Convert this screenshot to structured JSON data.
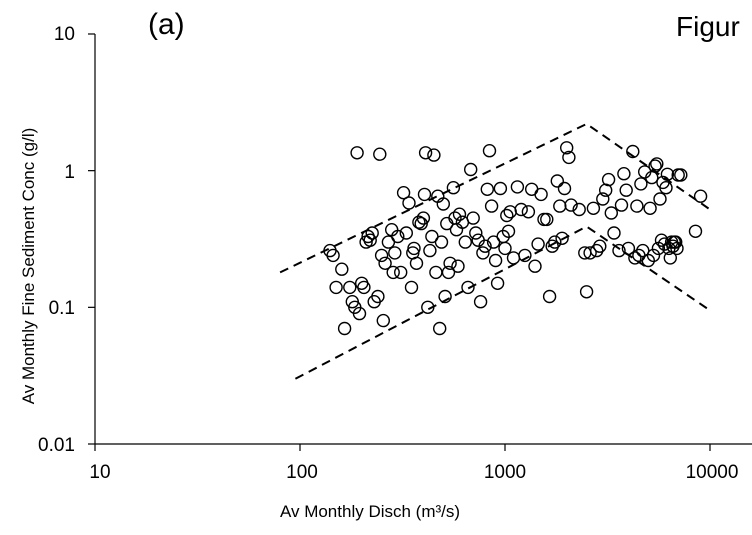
{
  "panel_label": "(a)",
  "figure_label": "Figur",
  "chart_data": {
    "type": "scatter",
    "title": "",
    "xlabel": "Av Monthly Disch (m³/s)",
    "ylabel": "Av Monthly  Fine Sediment Conc (g/l)",
    "x_scale": "log",
    "y_scale": "log",
    "xlim": [
      10,
      10000
    ],
    "ylim": [
      0.01,
      10
    ],
    "x_ticks": [
      "10",
      "100",
      "1000",
      "10000"
    ],
    "y_ticks": [
      "10",
      "1",
      "0.1",
      "0.01"
    ],
    "grid": false,
    "legend": "none",
    "marker": "open-circle",
    "points": [
      [
        140,
        0.26
      ],
      [
        145,
        0.24
      ],
      [
        150,
        0.14
      ],
      [
        160,
        0.19
      ],
      [
        165,
        0.07
      ],
      [
        175,
        0.14
      ],
      [
        180,
        0.11
      ],
      [
        185,
        0.1
      ],
      [
        190,
        1.35
      ],
      [
        195,
        0.09
      ],
      [
        200,
        0.15
      ],
      [
        205,
        0.14
      ],
      [
        210,
        0.3
      ],
      [
        215,
        0.33
      ],
      [
        220,
        0.31
      ],
      [
        225,
        0.35
      ],
      [
        230,
        0.11
      ],
      [
        240,
        0.12
      ],
      [
        245,
        1.32
      ],
      [
        250,
        0.24
      ],
      [
        255,
        0.08
      ],
      [
        260,
        0.21
      ],
      [
        270,
        0.3
      ],
      [
        280,
        0.37
      ],
      [
        285,
        0.18
      ],
      [
        290,
        0.25
      ],
      [
        300,
        0.33
      ],
      [
        310,
        0.18
      ],
      [
        320,
        0.69
      ],
      [
        330,
        0.35
      ],
      [
        340,
        0.58
      ],
      [
        350,
        0.14
      ],
      [
        355,
        0.25
      ],
      [
        360,
        0.27
      ],
      [
        370,
        0.21
      ],
      [
        380,
        0.42
      ],
      [
        390,
        0.41
      ],
      [
        400,
        0.45
      ],
      [
        405,
        0.67
      ],
      [
        410,
        1.35
      ],
      [
        420,
        0.1
      ],
      [
        430,
        0.26
      ],
      [
        440,
        0.33
      ],
      [
        450,
        1.3
      ],
      [
        460,
        0.18
      ],
      [
        470,
        0.65
      ],
      [
        480,
        0.07
      ],
      [
        490,
        0.3
      ],
      [
        500,
        0.57
      ],
      [
        510,
        0.12
      ],
      [
        520,
        0.41
      ],
      [
        530,
        0.18
      ],
      [
        540,
        0.21
      ],
      [
        560,
        0.75
      ],
      [
        570,
        0.45
      ],
      [
        580,
        0.37
      ],
      [
        590,
        0.2
      ],
      [
        600,
        0.48
      ],
      [
        620,
        0.42
      ],
      [
        640,
        0.3
      ],
      [
        660,
        0.14
      ],
      [
        680,
        1.02
      ],
      [
        700,
        0.45
      ],
      [
        720,
        0.35
      ],
      [
        740,
        0.31
      ],
      [
        760,
        0.11
      ],
      [
        780,
        0.25
      ],
      [
        800,
        0.28
      ],
      [
        820,
        0.73
      ],
      [
        840,
        1.4
      ],
      [
        860,
        0.55
      ],
      [
        880,
        0.3
      ],
      [
        900,
        0.22
      ],
      [
        920,
        0.15
      ],
      [
        950,
        0.74
      ],
      [
        980,
        0.33
      ],
      [
        1000,
        0.27
      ],
      [
        1020,
        0.47
      ],
      [
        1040,
        0.36
      ],
      [
        1060,
        0.5
      ],
      [
        1100,
        0.23
      ],
      [
        1150,
        0.76
      ],
      [
        1200,
        0.52
      ],
      [
        1250,
        0.24
      ],
      [
        1300,
        0.5
      ],
      [
        1350,
        0.73
      ],
      [
        1400,
        0.2
      ],
      [
        1450,
        0.29
      ],
      [
        1500,
        0.67
      ],
      [
        1550,
        0.44
      ],
      [
        1600,
        0.44
      ],
      [
        1650,
        0.12
      ],
      [
        1700,
        0.28
      ],
      [
        1750,
        0.3
      ],
      [
        1800,
        0.84
      ],
      [
        1850,
        0.55
      ],
      [
        1900,
        0.32
      ],
      [
        1950,
        0.74
      ],
      [
        2000,
        1.47
      ],
      [
        2050,
        1.25
      ],
      [
        2100,
        0.56
      ],
      [
        2300,
        0.52
      ],
      [
        2450,
        0.25
      ],
      [
        2500,
        0.13
      ],
      [
        2600,
        0.25
      ],
      [
        2700,
        0.53
      ],
      [
        2800,
        0.26
      ],
      [
        2900,
        0.28
      ],
      [
        3000,
        0.62
      ],
      [
        3100,
        0.72
      ],
      [
        3200,
        0.86
      ],
      [
        3300,
        0.49
      ],
      [
        3400,
        0.35
      ],
      [
        3600,
        0.26
      ],
      [
        3700,
        0.56
      ],
      [
        3800,
        0.95
      ],
      [
        3900,
        0.72
      ],
      [
        4000,
        0.27
      ],
      [
        4200,
        1.38
      ],
      [
        4300,
        0.23
      ],
      [
        4400,
        0.55
      ],
      [
        4500,
        0.24
      ],
      [
        4600,
        0.8
      ],
      [
        4700,
        0.26
      ],
      [
        4800,
        0.98
      ],
      [
        5000,
        0.22
      ],
      [
        5100,
        0.53
      ],
      [
        5200,
        0.89
      ],
      [
        5300,
        0.24
      ],
      [
        5400,
        1.08
      ],
      [
        5500,
        1.12
      ],
      [
        5600,
        0.27
      ],
      [
        5700,
        0.62
      ],
      [
        5800,
        0.31
      ],
      [
        5900,
        0.82
      ],
      [
        6000,
        0.29
      ],
      [
        6100,
        0.75
      ],
      [
        6200,
        0.94
      ],
      [
        6300,
        0.27
      ],
      [
        6400,
        0.23
      ],
      [
        6500,
        0.3
      ],
      [
        6600,
        0.28
      ],
      [
        6700,
        0.3
      ],
      [
        6800,
        0.3
      ],
      [
        6900,
        0.27
      ],
      [
        7000,
        0.93
      ],
      [
        7200,
        0.93
      ],
      [
        8500,
        0.36
      ],
      [
        9000,
        0.65
      ]
    ],
    "envelope_lines": [
      {
        "style": "dashed",
        "points": [
          [
            80,
            0.18
          ],
          [
            2500,
            2.2
          ],
          [
            10000,
            0.52
          ]
        ]
      },
      {
        "style": "dashed",
        "points": [
          [
            95,
            0.03
          ],
          [
            2500,
            0.39
          ],
          [
            10000,
            0.095
          ]
        ]
      }
    ]
  }
}
